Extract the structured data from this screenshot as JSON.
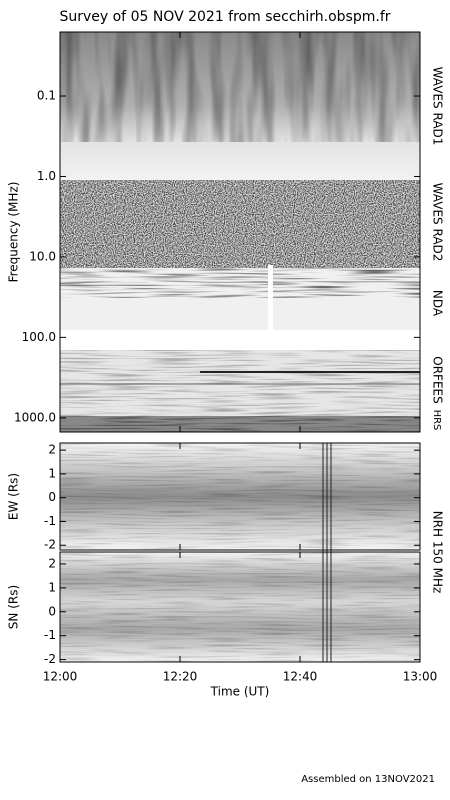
{
  "title": "Survey of 05 NOV 2021 from secchirh.obspm.fr",
  "footer": "Assembled on 13NOV2021",
  "chart_data": [
    {
      "type": "spectrogram",
      "ylabel": "Frequency (MHz)",
      "log_scale": true,
      "inverted": true,
      "ylim": [
        0.016,
        1500
      ],
      "yticks": [
        0.1,
        {
          "value": 1,
          "label": "1.0"
        },
        {
          "value": 10,
          "label": "10.0"
        },
        {
          "value": 100,
          "label": "100.0"
        },
        {
          "value": 1000,
          "label": "1000.0"
        }
      ],
      "instruments": [
        "WAVES RAD1",
        "WAVES RAD2",
        "NDA",
        "ORFEES",
        "HRS"
      ]
    },
    {
      "type": "heatmap",
      "ylabel": "EW (Rs)",
      "ylim": [
        -2.2,
        2.3
      ],
      "yticks": [
        -2,
        -1,
        0,
        1,
        2
      ],
      "instrument": "NRH 150 MHz"
    },
    {
      "type": "heatmap",
      "ylabel": "SN (Rs)",
      "ylim": [
        -2.1,
        2.5
      ],
      "yticks": [
        -2,
        -1,
        0,
        1,
        2
      ],
      "xlabel": "Time (UT)",
      "xlim": [
        "12:00",
        "13:00"
      ],
      "xticks": [
        "12:00",
        "12:20",
        "12:40",
        "13:00"
      ]
    }
  ]
}
